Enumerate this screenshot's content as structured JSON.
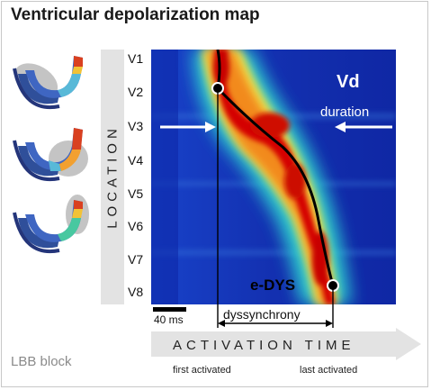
{
  "title": "Ventricular depolarization map",
  "location_label": "LOCATION",
  "locations": [
    "V1",
    "V2",
    "V3",
    "V4",
    "V5",
    "V6",
    "V7",
    "V8"
  ],
  "vd_label": "Vd",
  "duration_label": "duration",
  "edys_label": "e-DYS",
  "scale_label": "40 ms",
  "dyssynchrony_label": "dyssynchrony",
  "activation_time_label": "ACTIVATION TIME",
  "first_activated_label": "first activated",
  "last_activated_label": "last activated",
  "lbb_label": "LBB block",
  "colors": {
    "map_background": "#1535b8",
    "hot_core": "#d40000",
    "annotation_text": "#ffffff",
    "edys_text": "#000000",
    "band_gray": "#e3e3e3"
  }
}
